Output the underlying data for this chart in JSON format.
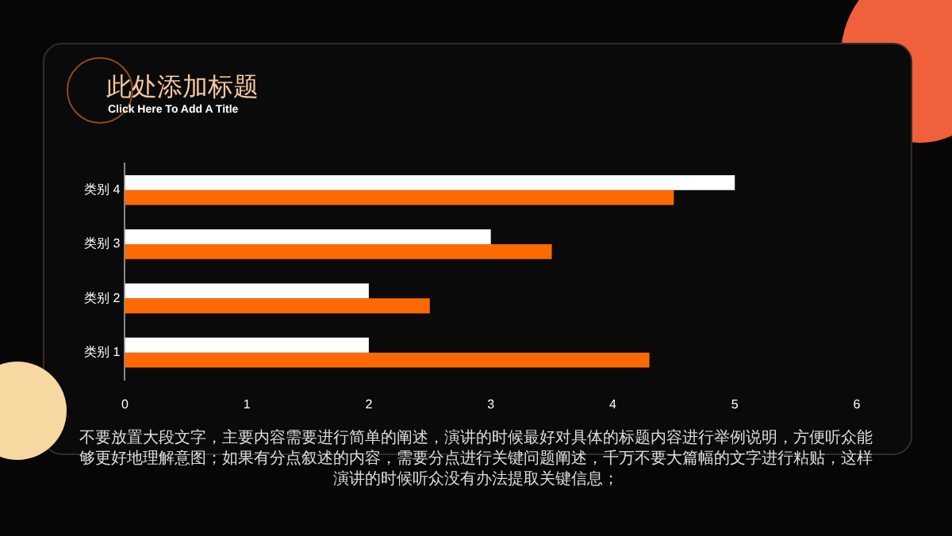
{
  "chart_data": {
    "type": "bar",
    "orientation": "horizontal",
    "title": "此处添加标题",
    "subtitle": "Click Here To Add A Title",
    "categories": [
      "类别 4",
      "类别 3",
      "类别 2",
      "类别 1"
    ],
    "series": [
      {
        "color": "#ffffff",
        "values": [
          5,
          3,
          2,
          2
        ]
      },
      {
        "color": "#ff6a00",
        "values": [
          4.5,
          3.5,
          2.5,
          4.3
        ]
      }
    ],
    "xlim": [
      0,
      6
    ],
    "xticks": [
      0,
      1,
      2,
      3,
      4,
      5,
      6
    ],
    "grid": false,
    "legend": false,
    "annotations": [
      "不要放置大段文字，主要内容需要进行简单的阐述，演讲的时候最好对具体的标题内容进行举例说明，方便听众能够更好地理解意图；如果有分点叙述的内容，需要分点进行关键问题阐述，千万不要大篇幅的文字进行粘贴，这样演讲的时候听众没有办法提取关键信息；"
    ]
  }
}
